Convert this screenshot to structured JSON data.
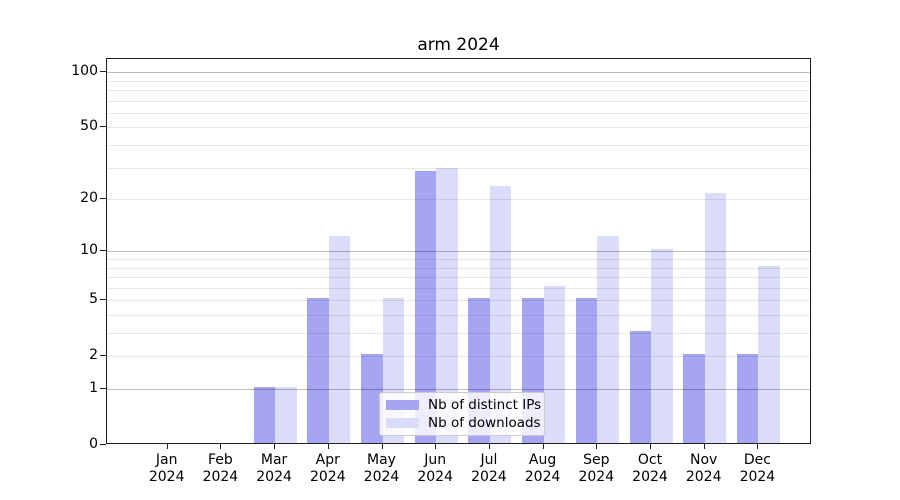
{
  "chart_data": {
    "type": "bar",
    "title": "arm 2024",
    "categories": [
      {
        "month": "Jan",
        "year": "2024"
      },
      {
        "month": "Feb",
        "year": "2024"
      },
      {
        "month": "Mar",
        "year": "2024"
      },
      {
        "month": "Apr",
        "year": "2024"
      },
      {
        "month": "May",
        "year": "2024"
      },
      {
        "month": "Jun",
        "year": "2024"
      },
      {
        "month": "Jul",
        "year": "2024"
      },
      {
        "month": "Aug",
        "year": "2024"
      },
      {
        "month": "Sep",
        "year": "2024"
      },
      {
        "month": "Oct",
        "year": "2024"
      },
      {
        "month": "Nov",
        "year": "2024"
      },
      {
        "month": "Dec",
        "year": "2024"
      }
    ],
    "series": [
      {
        "name": "Nb of distinct IPs",
        "color": "#a5a5f2",
        "values": [
          0,
          0,
          1,
          5,
          2,
          28,
          5,
          5,
          5,
          3,
          2,
          2
        ]
      },
      {
        "name": "Nb of downloads",
        "color": "#dbdbfa",
        "values": [
          0,
          0,
          1,
          12,
          5,
          29,
          23,
          6,
          12,
          10,
          21,
          8
        ]
      }
    ],
    "yscale": "log1p",
    "ylim": [
      0,
      118
    ],
    "y_tick_values": [
      0,
      1,
      2,
      5,
      10,
      20,
      50,
      100
    ],
    "y_tick_labels": [
      "0",
      "1",
      "2",
      "5",
      "10",
      "20",
      "50",
      "100"
    ],
    "minor_grid_values": [
      2,
      3,
      4,
      5,
      6,
      7,
      8,
      9,
      20,
      30,
      40,
      50,
      60,
      70,
      80,
      90
    ],
    "major_grid_values": [
      1,
      10,
      100
    ],
    "grid": "on",
    "legend_position": "lower center"
  }
}
